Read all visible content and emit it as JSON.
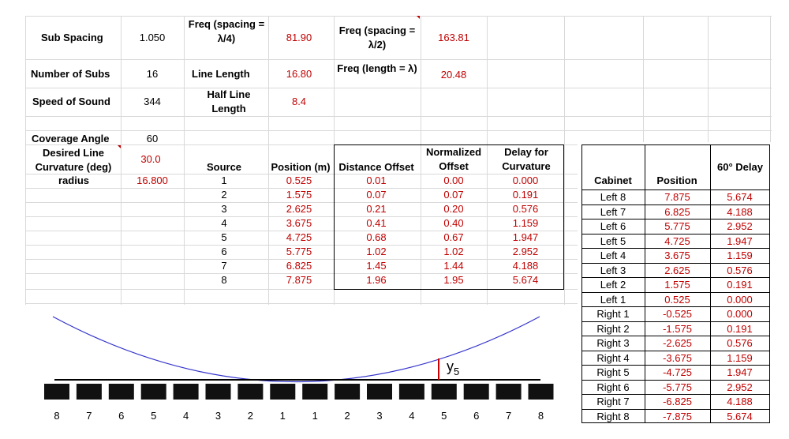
{
  "params": {
    "sub_spacing_label": "Sub Spacing",
    "sub_spacing_value": "1.050",
    "num_subs_label": "Number of Subs",
    "num_subs_value": "16",
    "speed_label": "Speed of Sound",
    "speed_value": "344",
    "coverage_label": "Coverage Angle",
    "coverage_value": "60",
    "curvature_label": "Desired Line Curvature (deg)",
    "curvature_value": "30.0",
    "radius_label": "radius",
    "radius_value": "16.800",
    "freq_q_label": "Freq (spacing = λ/4)",
    "freq_q_value": "81.90",
    "line_length_label": "Line Length",
    "line_length_value": "16.80",
    "half_line_label": "Half Line Length",
    "half_line_value": "8.4",
    "freq_h_label": "Freq (spacing = λ/2)",
    "freq_h_value": "163.81",
    "freq_l_label": "Freq (length = λ)",
    "freq_l_value": "20.48"
  },
  "calc_table": {
    "headers": [
      "Source",
      "Position (m)",
      "Distance Offset",
      "Normalized Offset",
      "Delay for Curvature"
    ],
    "rows": [
      [
        "1",
        "0.525",
        "0.01",
        "0.00",
        "0.000"
      ],
      [
        "2",
        "1.575",
        "0.07",
        "0.07",
        "0.191"
      ],
      [
        "3",
        "2.625",
        "0.21",
        "0.20",
        "0.576"
      ],
      [
        "4",
        "3.675",
        "0.41",
        "0.40",
        "1.159"
      ],
      [
        "5",
        "4.725",
        "0.68",
        "0.67",
        "1.947"
      ],
      [
        "6",
        "5.775",
        "1.02",
        "1.02",
        "2.952"
      ],
      [
        "7",
        "6.825",
        "1.45",
        "1.44",
        "4.188"
      ],
      [
        "8",
        "7.875",
        "1.96",
        "1.95",
        "5.674"
      ]
    ]
  },
  "cabinet_table": {
    "headers": [
      "Cabinet",
      "Position",
      "60° Delay"
    ],
    "rows": [
      [
        "Left 8",
        "7.875",
        "5.674"
      ],
      [
        "Left 7",
        "6.825",
        "4.188"
      ],
      [
        "Left 6",
        "5.775",
        "2.952"
      ],
      [
        "Left 5",
        "4.725",
        "1.947"
      ],
      [
        "Left 4",
        "3.675",
        "1.159"
      ],
      [
        "Left 3",
        "2.625",
        "0.576"
      ],
      [
        "Left 2",
        "1.575",
        "0.191"
      ],
      [
        "Left 1",
        "0.525",
        "0.000"
      ],
      [
        "Right 1",
        "-0.525",
        "0.000"
      ],
      [
        "Right 2",
        "-1.575",
        "0.191"
      ],
      [
        "Right 3",
        "-2.625",
        "0.576"
      ],
      [
        "Right 4",
        "-3.675",
        "1.159"
      ],
      [
        "Right 5",
        "-4.725",
        "1.947"
      ],
      [
        "Right 6",
        "-5.775",
        "2.952"
      ],
      [
        "Right 7",
        "-6.825",
        "4.188"
      ],
      [
        "Right 8",
        "-7.875",
        "5.674"
      ]
    ]
  },
  "diagram": {
    "y_label": "y",
    "y_subscript": "5",
    "sub_labels": [
      "8",
      "7",
      "6",
      "5",
      "4",
      "3",
      "2",
      "1",
      "1",
      "2",
      "3",
      "4",
      "5",
      "6",
      "7",
      "8"
    ],
    "curve_color": "#3333cc",
    "marker_color": "#cc0000"
  }
}
